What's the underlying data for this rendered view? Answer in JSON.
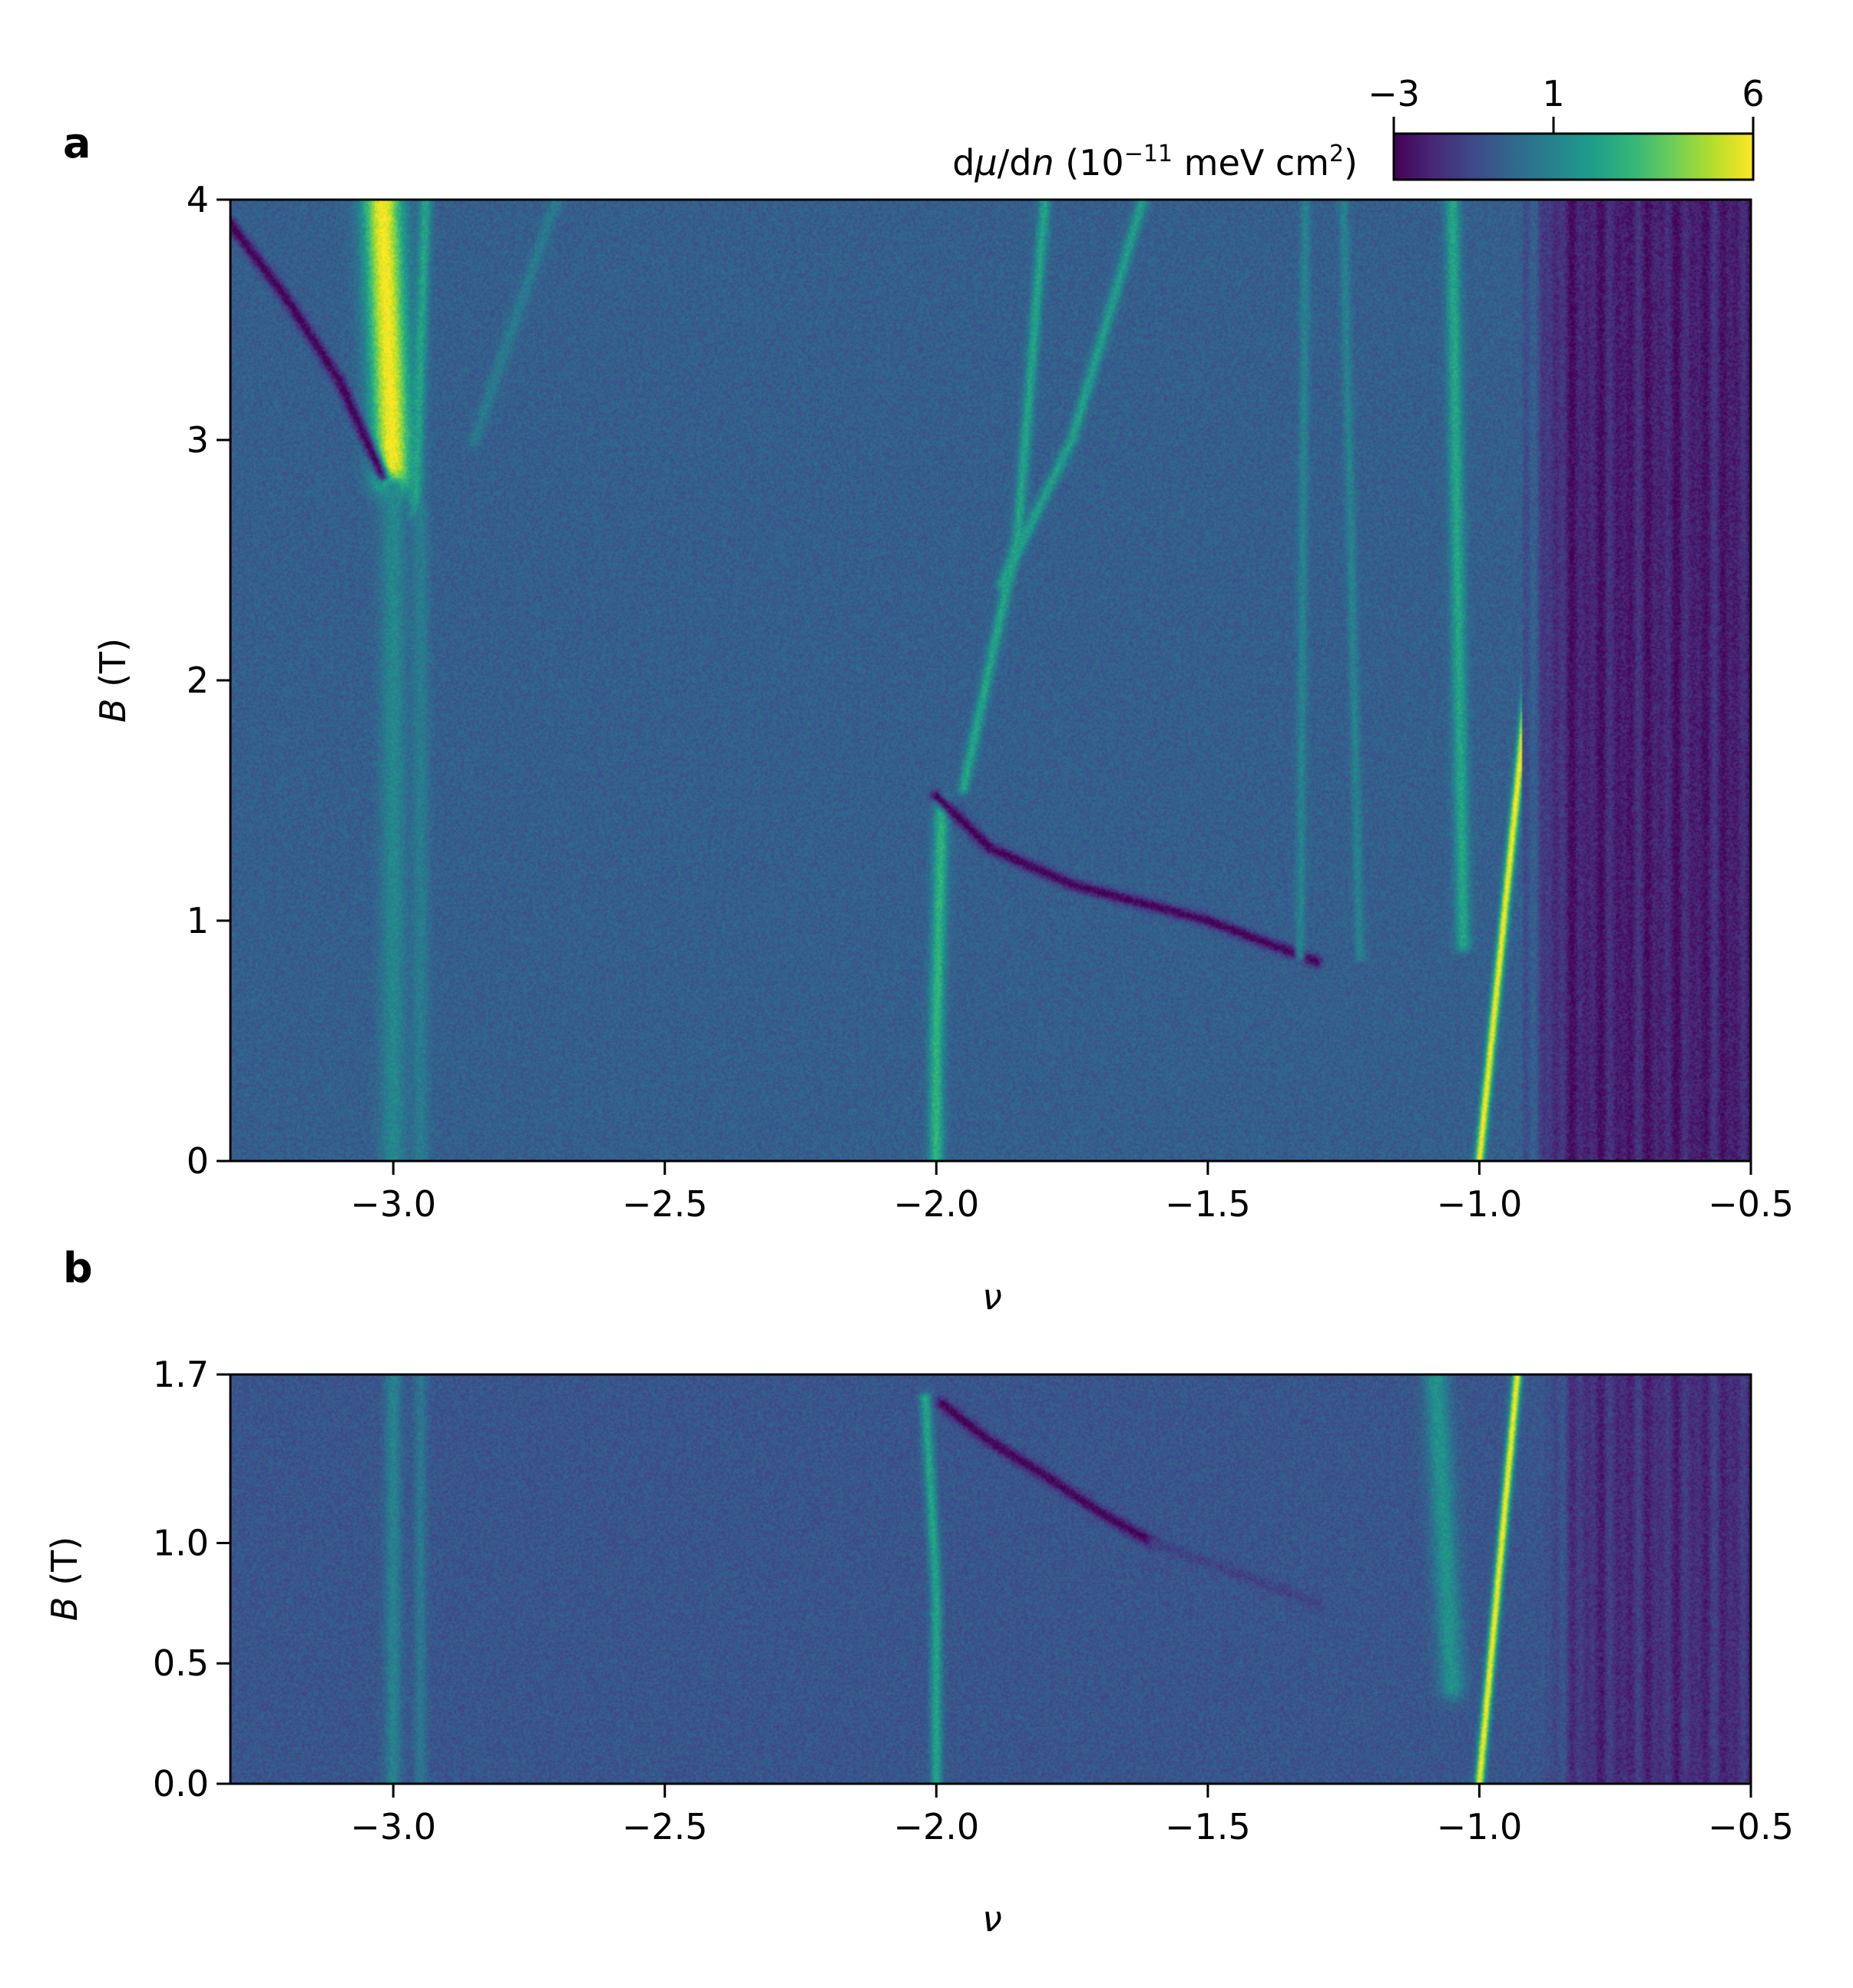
{
  "colors": {
    "colormap": "viridis",
    "viridis_stops": [
      "#440154",
      "#482878",
      "#3e4989",
      "#31688e",
      "#26828e",
      "#1f9e89",
      "#35b779",
      "#6ece58",
      "#b5de2b",
      "#fde725"
    ],
    "background": "#ffffff",
    "axis": "#000000"
  },
  "colorbar": {
    "label": "dμ/dn (10⁻¹¹ meV cm²)",
    "label_parts": {
      "d1": "d",
      "mu": "μ",
      "slash": "/d",
      "n": "n",
      "open": " (10",
      "exp1": "−11",
      "mid": " meV cm",
      "exp2": "2",
      "close": ")"
    },
    "ticks": [
      -3,
      1,
      6
    ],
    "tick_labels": [
      "−3",
      "1",
      "6"
    ],
    "range": [
      -3,
      6
    ]
  },
  "chart_data": [
    {
      "panel": "a",
      "type": "heatmap",
      "xlabel": "ν",
      "ylabel_parts": {
        "var": "B",
        "unit": " (T)"
      },
      "xlim": [
        -3.3,
        -0.5
      ],
      "ylim": [
        0,
        4
      ],
      "xticks": [
        -3.0,
        -2.5,
        -2.0,
        -1.5,
        -1.0,
        -0.5
      ],
      "xtick_labels": [
        "−3.0",
        "−2.5",
        "−2.0",
        "−1.5",
        "−1.0",
        "−0.5"
      ],
      "yticks": [
        0,
        1,
        2,
        3,
        4
      ],
      "ytick_labels": [
        "0",
        "1",
        "2",
        "3",
        "4"
      ],
      "background_value": -0.3,
      "features": [
        {
          "kind": "bright_line",
          "points": [
            [
              -3.0,
              2.85
            ],
            [
              -3.02,
              4.0
            ]
          ],
          "value": 6,
          "width": 0.045
        },
        {
          "kind": "bright_line",
          "points": [
            [
              -2.96,
              2.7
            ],
            [
              -2.94,
              4.0
            ]
          ],
          "value": 2.2,
          "width": 0.015
        },
        {
          "kind": "dark_line",
          "points": [
            [
              -3.3,
              3.9
            ],
            [
              -3.2,
              3.6
            ],
            [
              -3.1,
              3.25
            ],
            [
              -3.02,
              2.85
            ]
          ],
          "value": -3,
          "width": 0.014
        },
        {
          "kind": "faint_line",
          "points": [
            [
              -3.0,
              0.0
            ],
            [
              -3.0,
              2.8
            ]
          ],
          "value": 1.2,
          "width": 0.03
        },
        {
          "kind": "faint_line",
          "points": [
            [
              -2.95,
              0.0
            ],
            [
              -2.95,
              2.7
            ]
          ],
          "value": 0.8,
          "width": 0.02
        },
        {
          "kind": "faint_line",
          "points": [
            [
              -2.85,
              3.0
            ],
            [
              -2.7,
              4.0
            ]
          ],
          "value": 0.7,
          "width": 0.015
        },
        {
          "kind": "bright_line",
          "points": [
            [
              -2.0,
              0.0
            ],
            [
              -2.0,
              0.5
            ],
            [
              -1.99,
              1.5
            ]
          ],
          "value": 2.8,
          "width": 0.018
        },
        {
          "kind": "bright_line",
          "points": [
            [
              -1.95,
              1.55
            ],
            [
              -1.85,
              2.6
            ],
            [
              -1.8,
              4.0
            ]
          ],
          "value": 2.2,
          "width": 0.014
        },
        {
          "kind": "bright_line",
          "points": [
            [
              -1.88,
              2.4
            ],
            [
              -1.75,
              3.0
            ],
            [
              -1.62,
              4.0
            ]
          ],
          "value": 2.0,
          "width": 0.014
        },
        {
          "kind": "dark_line",
          "points": [
            [
              -2.0,
              1.52
            ],
            [
              -1.9,
              1.3
            ],
            [
              -1.75,
              1.15
            ],
            [
              -1.5,
              1.0
            ],
            [
              -1.3,
              0.83
            ]
          ],
          "value": -3,
          "width": 0.014
        },
        {
          "kind": "faint_line",
          "points": [
            [
              -1.33,
              0.85
            ],
            [
              -1.32,
              4.0
            ]
          ],
          "value": 1.0,
          "width": 0.012
        },
        {
          "kind": "faint_line",
          "points": [
            [
              -1.22,
              0.85
            ],
            [
              -1.25,
              4.0
            ]
          ],
          "value": 1.0,
          "width": 0.012
        },
        {
          "kind": "bright_line",
          "points": [
            [
              -1.03,
              0.9
            ],
            [
              -1.05,
              4.0
            ]
          ],
          "value": 2.3,
          "width": 0.018
        },
        {
          "kind": "bright_line",
          "points": [
            [
              -1.0,
              0.0
            ],
            [
              -0.82,
              4.0
            ]
          ],
          "value": 6,
          "width": 0.011
        },
        {
          "kind": "dark_region",
          "x_from": -0.92,
          "x_to": -0.5,
          "value": -2.2
        }
      ]
    },
    {
      "panel": "b",
      "type": "heatmap",
      "xlabel": "ν",
      "ylabel_parts": {
        "var": "B",
        "unit": " (T)"
      },
      "xlim": [
        -3.3,
        -0.5
      ],
      "ylim": [
        0,
        1.7
      ],
      "xticks": [
        -3.0,
        -2.5,
        -2.0,
        -1.5,
        -1.0,
        -0.5
      ],
      "xtick_labels": [
        "−3.0",
        "−2.5",
        "−2.0",
        "−1.5",
        "−1.0",
        "−0.5"
      ],
      "yticks": [
        0.0,
        0.5,
        1.0,
        1.7
      ],
      "ytick_labels": [
        "0.0",
        "0.5",
        "1.0",
        "1.7"
      ],
      "background_value": -0.6,
      "features": [
        {
          "kind": "faint_line",
          "points": [
            [
              -3.0,
              0.0
            ],
            [
              -3.0,
              1.7
            ]
          ],
          "value": 1.0,
          "width": 0.02
        },
        {
          "kind": "faint_line",
          "points": [
            [
              -2.95,
              0.0
            ],
            [
              -2.95,
              1.7
            ]
          ],
          "value": 0.6,
          "width": 0.015
        },
        {
          "kind": "bright_line",
          "points": [
            [
              -2.0,
              0.0
            ],
            [
              -2.0,
              0.8
            ],
            [
              -2.02,
              1.6
            ]
          ],
          "value": 2.2,
          "width": 0.014
        },
        {
          "kind": "dark_line",
          "points": [
            [
              -1.99,
              1.58
            ],
            [
              -1.9,
              1.42
            ],
            [
              -1.8,
              1.28
            ],
            [
              -1.7,
              1.13
            ],
            [
              -1.6,
              1.0
            ]
          ],
          "value": -3,
          "width": 0.014
        },
        {
          "kind": "faint_line",
          "points": [
            [
              -1.6,
              1.0
            ],
            [
              -1.3,
              0.75
            ]
          ],
          "value": -1.2,
          "width": 0.014
        },
        {
          "kind": "bright_line",
          "points": [
            [
              -1.05,
              0.4
            ],
            [
              -1.08,
              1.7
            ]
          ],
          "value": 1.6,
          "width": 0.03
        },
        {
          "kind": "bright_line",
          "points": [
            [
              -1.0,
              0.0
            ],
            [
              -0.93,
              1.7
            ]
          ],
          "value": 6,
          "width": 0.011
        },
        {
          "kind": "dark_region",
          "x_from": -0.88,
          "x_to": -0.5,
          "value": -1.8
        }
      ]
    }
  ],
  "panel_labels": [
    "a",
    "b"
  ]
}
